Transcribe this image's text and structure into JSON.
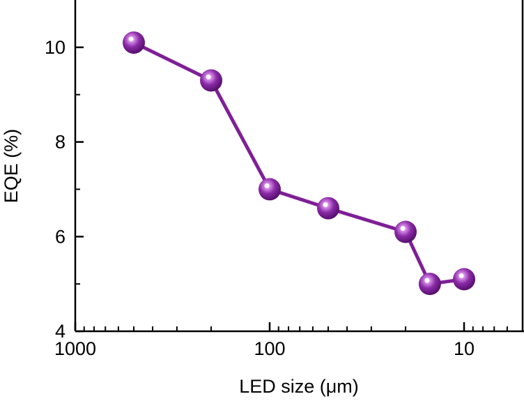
{
  "chart_data": {
    "type": "line",
    "xlabel": "LED size (μm)",
    "ylabel": "EQE (%)",
    "xscale": "log",
    "x_reversed": true,
    "xlim": [
      1000,
      5
    ],
    "ylim": [
      4,
      11
    ],
    "xticks": [
      1000,
      100,
      10
    ],
    "xtick_labels": [
      "1000",
      "100",
      "10"
    ],
    "yticks": [
      4,
      6,
      8,
      10
    ],
    "ytick_labels": [
      "4",
      "6",
      "8",
      "10"
    ],
    "grid": false,
    "legend": "none",
    "series": [
      {
        "x": [
          500,
          200,
          100,
          50,
          20,
          15,
          10
        ],
        "y": [
          10.1,
          9.3,
          7.0,
          6.6,
          6.1,
          5.0,
          5.1
        ],
        "color": "#7f1f97",
        "marker": "sphere"
      }
    ]
  }
}
